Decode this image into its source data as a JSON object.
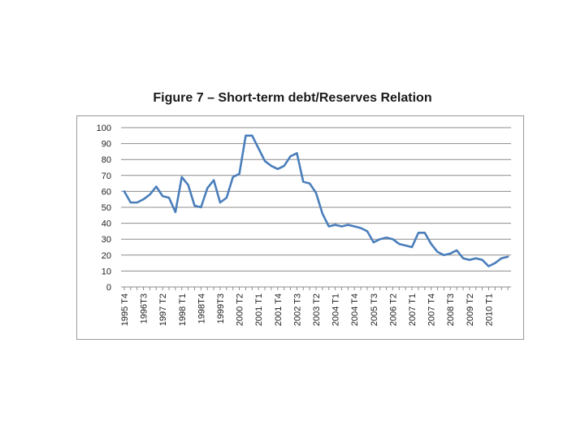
{
  "chart_data": {
    "type": "line",
    "title": "Figure 7 – Short-term debt/Reserves Relation",
    "xlabel": "",
    "ylabel": "",
    "ylim": [
      0,
      100
    ],
    "yticks": [
      0,
      10,
      20,
      30,
      40,
      50,
      60,
      70,
      80,
      90,
      100
    ],
    "grid": true,
    "legend": "none",
    "x_tick_labels": [
      "1995 T4",
      "1996T3",
      "1997 T2",
      "1998 T1",
      "1998T4",
      "1999T3",
      "2000 T2",
      "2001 T1",
      "2001 T4",
      "2002 T3",
      "2003 T2",
      "2004 T1",
      "2004 T4",
      "2005 T3",
      "2006 T2",
      "2007 T1",
      "2007 T4",
      "2008 T3",
      "2009 T2",
      "2010 T1"
    ],
    "series": [
      {
        "name": "Short-term debt/Reserves",
        "color": "#4a7ebb",
        "values": [
          60,
          53,
          53,
          55,
          58,
          63,
          57,
          56,
          47,
          69,
          64,
          51,
          50,
          62,
          67,
          53,
          56,
          69,
          71,
          95,
          95,
          87,
          79,
          76,
          74,
          76,
          82,
          84,
          66,
          65,
          59,
          46,
          38,
          39,
          38,
          39,
          38,
          37,
          35,
          28,
          30,
          31,
          30,
          27,
          26,
          25,
          34,
          34,
          27,
          22,
          20,
          21,
          23,
          18,
          17,
          18,
          17,
          13,
          15,
          18,
          19
        ]
      }
    ]
  }
}
